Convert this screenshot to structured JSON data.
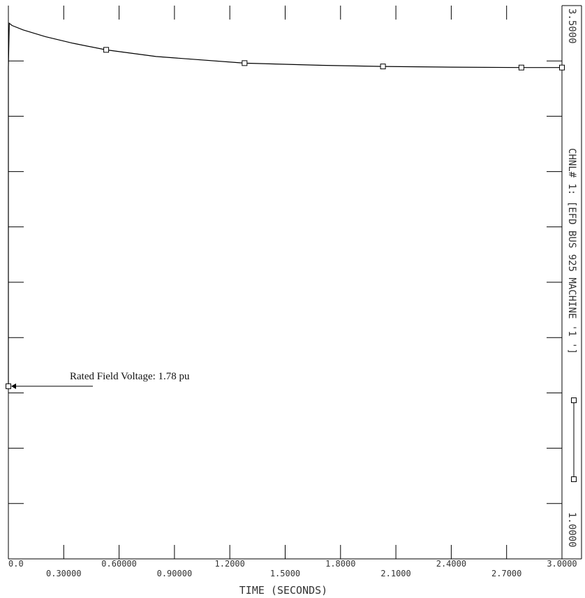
{
  "chart_data": {
    "type": "line",
    "xlabel": "TIME  (SECONDS)",
    "x_range": [
      0,
      3.0
    ],
    "y_range": [
      1.0,
      3.5
    ],
    "x_tick_labels_row1": [
      {
        "value": 0.0,
        "label": "0.0"
      },
      {
        "value": 0.6,
        "label": "0.60000"
      },
      {
        "value": 1.2,
        "label": "1.2000"
      },
      {
        "value": 1.8,
        "label": "1.8000"
      },
      {
        "value": 2.4,
        "label": "2.4000"
      },
      {
        "value": 3.0,
        "label": "3.0000"
      }
    ],
    "x_tick_labels_row2": [
      {
        "value": 0.3,
        "label": "0.30000"
      },
      {
        "value": 0.9,
        "label": "0.90000"
      },
      {
        "value": 1.5,
        "label": "1.5000"
      },
      {
        "value": 2.1,
        "label": "2.1000"
      },
      {
        "value": 2.7,
        "label": "2.7000"
      }
    ],
    "y_max_label": "3.5000",
    "y_min_label": "1.0000",
    "channel_label": "CHNL# 1: [EFD   BUS 925   MACHINE '1 ']",
    "series": [
      {
        "marker": "square",
        "x": [
          0.0,
          0.0,
          0.005,
          0.02,
          0.08,
          0.2,
          0.35,
          0.53,
          0.8,
          1.28,
          1.7,
          2.03,
          2.4,
          2.78,
          3.0
        ],
        "y": [
          1.78,
          3.22,
          3.42,
          3.41,
          3.39,
          3.36,
          3.33,
          3.3,
          3.27,
          3.24,
          3.23,
          3.225,
          3.222,
          3.22,
          3.22
        ],
        "marker_x": [
          0.0,
          0.53,
          1.28,
          2.03,
          2.78,
          3.0
        ],
        "marker_y": [
          1.78,
          3.3,
          3.24,
          3.225,
          3.22,
          3.22
        ]
      }
    ],
    "annotation": {
      "text": "Rated Field Voltage: 1.78 pu",
      "x": 0.0,
      "y": 1.78
    }
  }
}
